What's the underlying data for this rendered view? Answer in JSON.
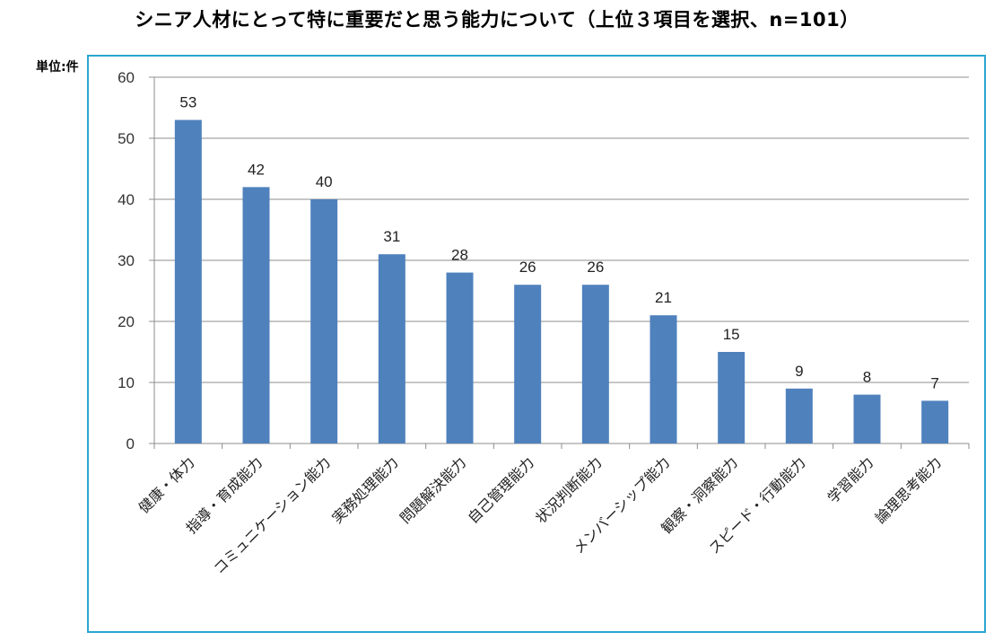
{
  "title": "シニア人材にとって特に重要だと思う能力について（上位３項目を選択、n=101）",
  "unit_label": "単位:件",
  "colors": {
    "bar": "#4f81bd",
    "frame": "#2aa7cf",
    "grid": "#8c8c8c"
  },
  "chart_data": {
    "type": "bar",
    "categories": [
      "健康・体力",
      "指導・育成能力",
      "コミュニケーション能力",
      "実務処理能力",
      "問題解決能力",
      "自己管理能力",
      "状況判断能力",
      "メンバーシップ能力",
      "観察・洞察能力",
      "スピード・行動能力",
      "学習能力",
      "論理思考能力"
    ],
    "values": [
      53,
      42,
      40,
      31,
      28,
      26,
      26,
      21,
      15,
      9,
      8,
      7
    ],
    "ylim": [
      0,
      60
    ],
    "yticks": [
      0,
      10,
      20,
      30,
      40,
      50,
      60
    ],
    "grid": true,
    "data_labels": true
  }
}
